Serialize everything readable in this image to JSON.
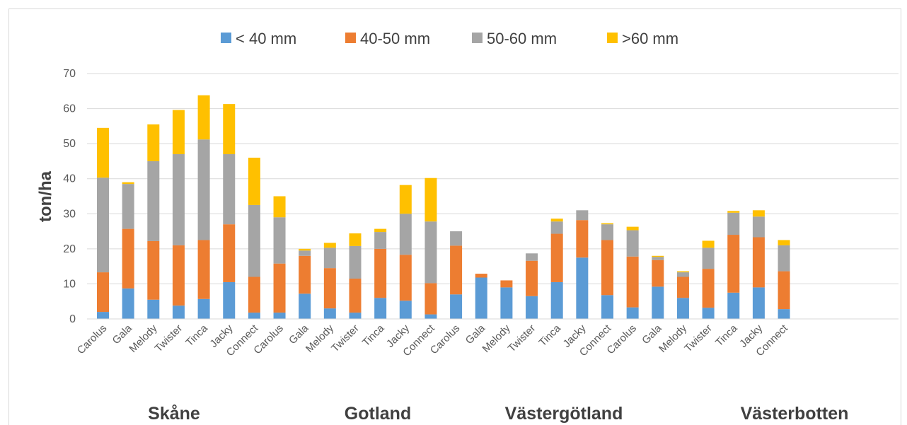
{
  "chart_data": {
    "type": "bar",
    "stacked": true,
    "ylabel": "ton/ha",
    "ylim": [
      0,
      70
    ],
    "yticks": [
      0,
      10,
      20,
      30,
      40,
      50,
      60,
      70
    ],
    "grid": true,
    "legend_position": "top",
    "categories": [
      "Carolus",
      "Gala",
      "Melody",
      "Twister",
      "Tinca",
      "Jacky",
      "Connect",
      "Carolus",
      "Gala",
      "Melody",
      "Twister",
      "Tinca",
      "Jacky",
      "Connect",
      "Carolus",
      "Gala",
      "Melody",
      "Twister",
      "Tinca",
      "Jacky",
      "Connect",
      "Carolus",
      "Gala",
      "Melody",
      "Twister",
      "Tinca",
      "Jacky",
      "Connect"
    ],
    "groups": [
      {
        "label": "Skåne",
        "start": 0,
        "count": 7
      },
      {
        "label": "Gotland",
        "start": 7,
        "count": 7
      },
      {
        "label": "Västergötland",
        "start": 14,
        "count": 7
      },
      {
        "label": "Västerbotten",
        "start": 21,
        "count": 7
      }
    ],
    "series": [
      {
        "name": "< 40 mm",
        "color": "#5B9BD5",
        "values": [
          2,
          8.7,
          5.5,
          3.8,
          5.7,
          10.5,
          1.8,
          1.8,
          7.2,
          3,
          1.8,
          6,
          5.2,
          1.3,
          7,
          11.8,
          9,
          6.5,
          10.5,
          17.5,
          6.8,
          3.3,
          9.2,
          6,
          3.2,
          7.5,
          9,
          2.8
        ]
      },
      {
        "name": "40-50 mm",
        "color": "#ED7D31",
        "values": [
          11.3,
          17,
          16.7,
          17.2,
          16.8,
          16.5,
          10.2,
          14,
          10.8,
          11.5,
          9.7,
          14,
          13.1,
          8.9,
          13.9,
          1.1,
          2,
          10.1,
          13.8,
          10.7,
          15.7,
          14.5,
          7.6,
          6,
          11.1,
          16.5,
          14.3,
          10.8
        ]
      },
      {
        "name": "50-60 mm",
        "color": "#A5A5A5",
        "values": [
          27,
          12.8,
          22.8,
          26,
          28.7,
          20,
          20.5,
          13.2,
          1.5,
          5.8,
          9.3,
          4.8,
          11.7,
          17.6,
          4.1,
          0,
          0,
          2.1,
          3.5,
          2.8,
          4.5,
          7.5,
          0.9,
          1.3,
          6,
          6.3,
          5.9,
          7.4
        ]
      },
      {
        "name": ">60 mm",
        "color": "#FFC000",
        "values": [
          14.2,
          0.5,
          10.5,
          12.6,
          12.6,
          14.3,
          13.5,
          6,
          0.5,
          1.4,
          3.6,
          0.9,
          8.2,
          12.4,
          0,
          0,
          0,
          0,
          0.8,
          0,
          0.3,
          1,
          0.3,
          0.3,
          2,
          0.5,
          1.8,
          1.5
        ]
      }
    ]
  }
}
